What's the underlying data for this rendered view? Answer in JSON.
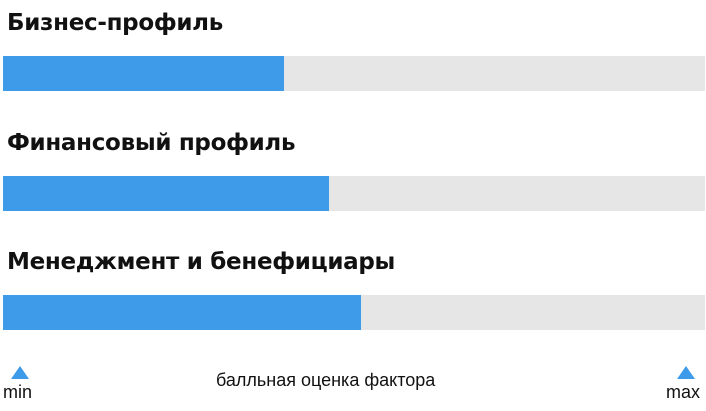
{
  "chart_data": {
    "type": "bar",
    "orientation": "horizontal",
    "categories": [
      "Бизнес-профиль",
      "Финансовый профиль",
      "Менеджмент и бенефициары"
    ],
    "values": [
      0.4,
      0.465,
      0.51
    ],
    "xlim": [
      0,
      1
    ],
    "xlabel": "балльная оценка фактора",
    "min_label": "min",
    "max_label": "max",
    "fill_color": "#3d9be9",
    "track_color": "#e6e6e6",
    "grid": false
  }
}
